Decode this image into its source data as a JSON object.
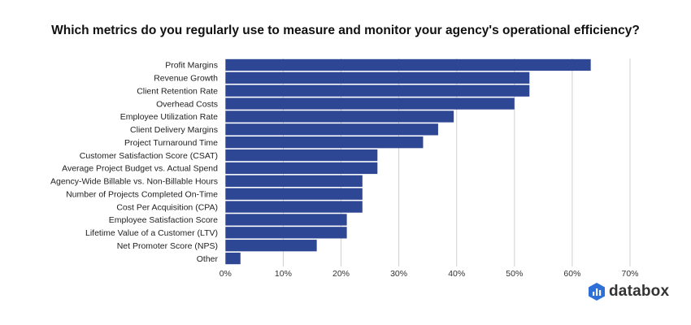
{
  "chart_data": {
    "type": "bar",
    "orientation": "horizontal",
    "title": "Which metrics do you regularly use to measure and monitor your agency's operational efficiency?",
    "categories": [
      "Profit Margins",
      "Revenue Growth",
      "Client Retention Rate",
      "Overhead Costs",
      "Employee Utilization Rate",
      "Client Delivery Margins",
      "Project Turnaround Time",
      "Customer Satisfaction Score (CSAT)",
      "Average Project Budget vs. Actual Spend",
      "Agency-Wide Billable vs. Non-Billable Hours",
      "Number of Projects Completed On-Time",
      "Cost Per Acquisition (CPA)",
      "Employee Satisfaction Score",
      "Lifetime Value of a Customer (LTV)",
      "Net Promoter Score (NPS)",
      "Other"
    ],
    "values": [
      63.2,
      52.6,
      52.6,
      50.0,
      39.5,
      36.8,
      34.2,
      26.3,
      26.3,
      23.7,
      23.7,
      23.7,
      21.0,
      21.0,
      15.8,
      2.6
    ],
    "xlim": [
      0,
      70
    ],
    "xticks": [
      "0%",
      "10%",
      "20%",
      "30%",
      "40%",
      "50%",
      "60%",
      "70%"
    ],
    "grid": true,
    "bar_color": "#2e4795"
  },
  "brand": {
    "name": "databox",
    "color": "#2e6fd8"
  }
}
